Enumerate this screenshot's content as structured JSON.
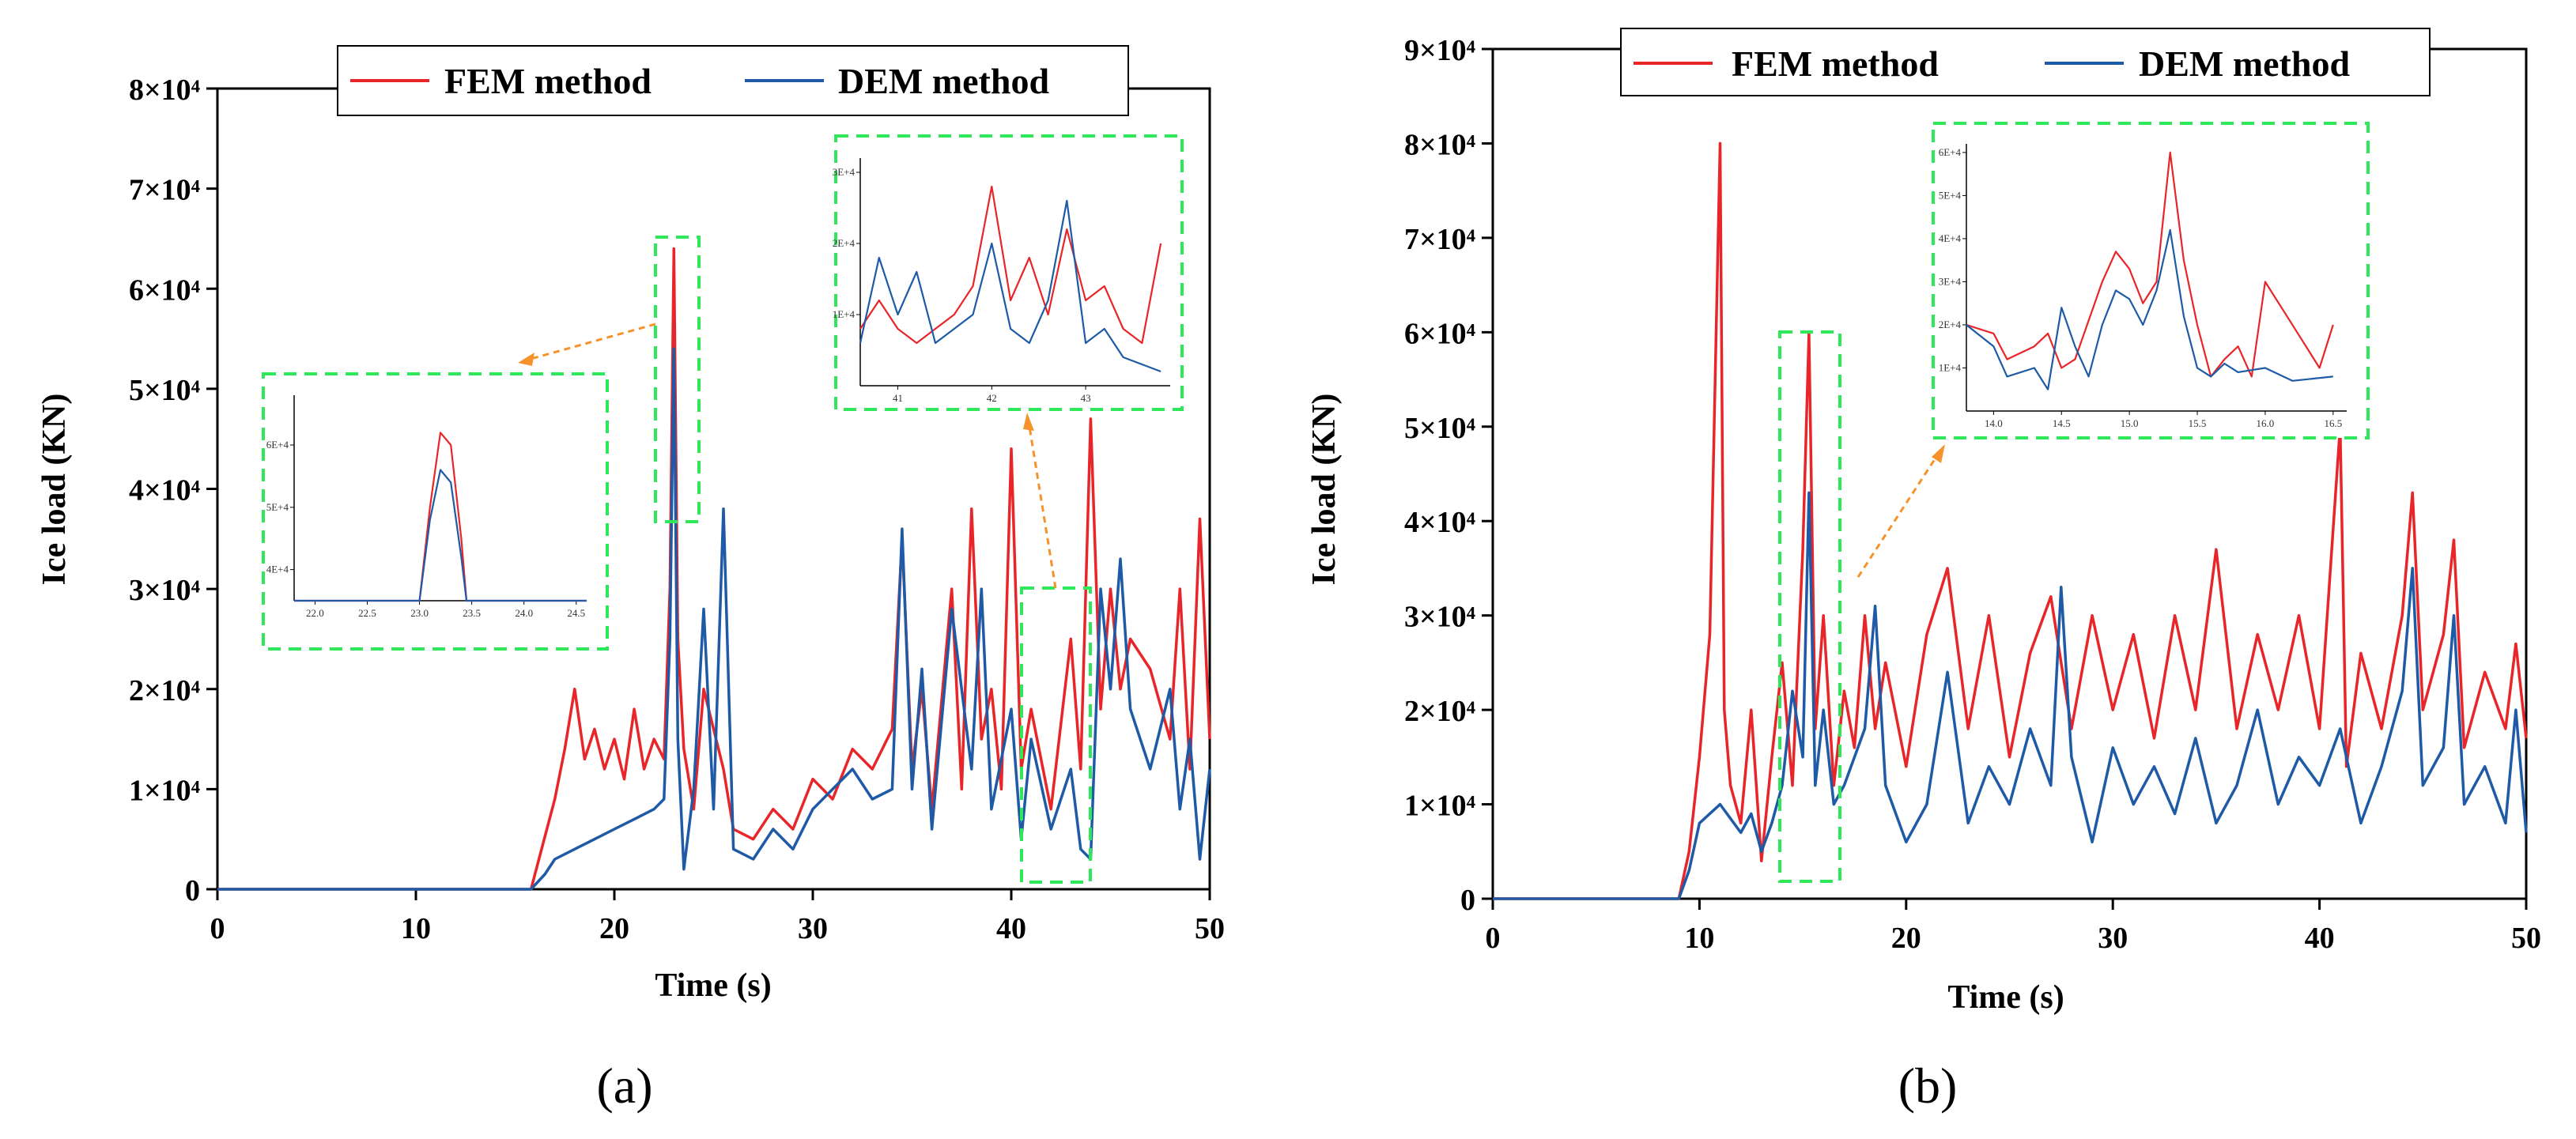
{
  "legend": {
    "fem": "FEM method",
    "dem": "DEM method"
  },
  "colors": {
    "fem": "#e8262a",
    "dem": "#1f5aa6",
    "highlight": "#2ee85a",
    "arrow": "#f5922a"
  },
  "chart_data": [
    {
      "panel": "(a)",
      "type": "line",
      "xlabel": "Time (s)",
      "ylabel": "Ice load (KN)",
      "xlim": [
        0,
        50
      ],
      "ylim": [
        0,
        80000
      ],
      "xticks": [
        0,
        10,
        20,
        30,
        40,
        50
      ],
      "ytick_labels": [
        {
          "value": 0,
          "label": "0"
        },
        {
          "value": 10000,
          "label": "1×10⁴"
        },
        {
          "value": 20000,
          "label": "2×10⁴"
        },
        {
          "value": 30000,
          "label": "3×10⁴"
        },
        {
          "value": 40000,
          "label": "4×10⁴"
        },
        {
          "value": 50000,
          "label": "5×10⁴"
        },
        {
          "value": 60000,
          "label": "6×10⁴"
        },
        {
          "value": 70000,
          "label": "7×10⁴"
        },
        {
          "value": 80000,
          "label": "8×10⁴"
        }
      ],
      "legend_position": "top-center",
      "series": [
        {
          "name": "FEM method",
          "x": [
            0,
            15.8,
            16.2,
            17,
            17.5,
            18,
            18.5,
            19,
            19.5,
            20,
            20.5,
            21,
            21.5,
            22,
            22.5,
            22.8,
            23.0,
            23.2,
            23.5,
            24,
            24.5,
            25,
            25.5,
            26,
            27,
            28,
            29,
            30,
            31,
            32,
            33,
            34,
            34.5,
            35,
            35.5,
            36,
            37,
            37.5,
            38,
            38.5,
            39,
            39.5,
            40,
            40.5,
            41,
            42,
            43,
            43.5,
            44,
            44.5,
            45,
            45.5,
            46,
            47,
            48,
            48.5,
            49,
            49.5,
            50
          ],
          "values": [
            0,
            0,
            3000,
            9000,
            14000,
            20000,
            13000,
            16000,
            12000,
            15000,
            11000,
            18000,
            12000,
            15000,
            13000,
            30000,
            64000,
            25000,
            14000,
            8000,
            20000,
            16000,
            12000,
            6000,
            5000,
            8000,
            6000,
            11000,
            9000,
            14000,
            12000,
            16000,
            35000,
            12000,
            20000,
            8000,
            30000,
            10000,
            38000,
            15000,
            20000,
            10000,
            44000,
            12000,
            18000,
            8000,
            25000,
            12000,
            47000,
            18000,
            30000,
            20000,
            25000,
            22000,
            15000,
            30000,
            12000,
            37000,
            15000
          ]
        },
        {
          "name": "DEM method",
          "x": [
            0,
            15.8,
            16.5,
            17,
            18,
            19,
            20,
            21,
            22,
            22.5,
            22.8,
            23.0,
            23.2,
            23.5,
            24,
            24.5,
            25,
            25.5,
            26,
            27,
            28,
            29,
            30,
            31,
            32,
            33,
            34,
            34.5,
            35,
            35.5,
            36,
            37,
            38,
            38.5,
            39,
            40,
            40.5,
            41,
            42,
            43,
            43.5,
            44,
            44.5,
            45,
            45.5,
            46,
            47,
            48,
            48.5,
            49,
            49.5,
            50
          ],
          "values": [
            0,
            0,
            1500,
            3000,
            4000,
            5000,
            6000,
            7000,
            8000,
            9000,
            25000,
            54000,
            15000,
            2000,
            10000,
            28000,
            8000,
            38000,
            4000,
            3000,
            6000,
            4000,
            8000,
            10000,
            12000,
            9000,
            10000,
            36000,
            10000,
            22000,
            6000,
            28000,
            12000,
            30000,
            8000,
            18000,
            5000,
            15000,
            6000,
            12000,
            4000,
            3000,
            30000,
            20000,
            33000,
            18000,
            12000,
            20000,
            8000,
            15000,
            3000,
            12000
          ]
        }
      ],
      "insets": [
        {
          "xticks": [
            "22.0",
            "22.5",
            "23.0",
            "23.5",
            "24.0",
            "24.5"
          ],
          "yticks": [
            "4E+4",
            "5E+4",
            "6E+4"
          ],
          "xrange": [
            21.8,
            24.6
          ],
          "yrange": [
            35000,
            68000
          ],
          "fem": [
            [
              21.8,
              35000
            ],
            [
              23.0,
              35000
            ],
            [
              23.1,
              50000
            ],
            [
              23.2,
              62000
            ],
            [
              23.3,
              60000
            ],
            [
              23.4,
              45000
            ],
            [
              23.45,
              35000
            ],
            [
              24.6,
              35000
            ]
          ],
          "dem": [
            [
              21.8,
              35000
            ],
            [
              23.0,
              35000
            ],
            [
              23.1,
              48000
            ],
            [
              23.2,
              56000
            ],
            [
              23.3,
              54000
            ],
            [
              23.4,
              42000
            ],
            [
              23.45,
              35000
            ],
            [
              24.6,
              35000
            ]
          ]
        },
        {
          "xticks": [
            "41",
            "42",
            "43"
          ],
          "yticks": [
            "1E+4",
            "2E+4",
            "3E+4"
          ],
          "xrange": [
            40.6,
            43.9
          ],
          "yrange": [
            0,
            32000
          ],
          "fem": [
            [
              40.6,
              8000
            ],
            [
              40.8,
              12000
            ],
            [
              41.0,
              8000
            ],
            [
              41.2,
              6000
            ],
            [
              41.4,
              8000
            ],
            [
              41.6,
              10000
            ],
            [
              41.8,
              14000
            ],
            [
              42.0,
              28000
            ],
            [
              42.2,
              12000
            ],
            [
              42.4,
              18000
            ],
            [
              42.6,
              10000
            ],
            [
              42.8,
              22000
            ],
            [
              43.0,
              12000
            ],
            [
              43.2,
              14000
            ],
            [
              43.4,
              8000
            ],
            [
              43.6,
              6000
            ],
            [
              43.8,
              20000
            ]
          ],
          "dem": [
            [
              40.6,
              6000
            ],
            [
              40.8,
              18000
            ],
            [
              41.0,
              10000
            ],
            [
              41.2,
              16000
            ],
            [
              41.4,
              6000
            ],
            [
              41.6,
              8000
            ],
            [
              41.8,
              10000
            ],
            [
              42.0,
              20000
            ],
            [
              42.2,
              8000
            ],
            [
              42.4,
              6000
            ],
            [
              42.6,
              12000
            ],
            [
              42.8,
              26000
            ],
            [
              43.0,
              6000
            ],
            [
              43.2,
              8000
            ],
            [
              43.4,
              4000
            ],
            [
              43.6,
              3000
            ],
            [
              43.8,
              2000
            ]
          ]
        }
      ]
    },
    {
      "panel": "(b)",
      "type": "line",
      "xlabel": "Time (s)",
      "ylabel": "Ice load (KN)",
      "xlim": [
        0,
        50
      ],
      "ylim": [
        0,
        90000
      ],
      "xticks": [
        0,
        10,
        20,
        30,
        40,
        50
      ],
      "ytick_labels": [
        {
          "value": 0,
          "label": "0"
        },
        {
          "value": 10000,
          "label": "1×10⁴"
        },
        {
          "value": 20000,
          "label": "2×10⁴"
        },
        {
          "value": 30000,
          "label": "3×10⁴"
        },
        {
          "value": 40000,
          "label": "4×10⁴"
        },
        {
          "value": 50000,
          "label": "5×10⁴"
        },
        {
          "value": 60000,
          "label": "6×10⁴"
        },
        {
          "value": 70000,
          "label": "7×10⁴"
        },
        {
          "value": 80000,
          "label": "8×10⁴"
        },
        {
          "value": 90000,
          "label": "9×10⁴"
        }
      ],
      "legend_position": "top-center",
      "series": [
        {
          "name": "FEM method",
          "x": [
            0,
            9,
            9.5,
            10,
            10.5,
            11,
            11.2,
            11.5,
            12,
            12.5,
            13,
            13.5,
            14,
            14.5,
            15,
            15.3,
            15.6,
            16,
            16.5,
            17,
            17.5,
            18,
            18.5,
            19,
            20,
            21,
            22,
            23,
            24,
            25,
            26,
            27,
            28,
            29,
            30,
            31,
            32,
            33,
            34,
            35,
            36,
            37,
            38,
            39,
            40,
            41,
            41.3,
            42,
            43,
            44,
            44.5,
            45,
            46,
            46.5,
            47,
            48,
            49,
            49.5,
            50
          ],
          "values": [
            0,
            0,
            5000,
            15000,
            28000,
            80000,
            20000,
            12000,
            8000,
            20000,
            4000,
            15000,
            25000,
            12000,
            37000,
            60000,
            18000,
            30000,
            12000,
            22000,
            16000,
            30000,
            18000,
            25000,
            14000,
            28000,
            35000,
            18000,
            30000,
            15000,
            26000,
            32000,
            18000,
            30000,
            20000,
            28000,
            17000,
            30000,
            20000,
            37000,
            18000,
            28000,
            20000,
            30000,
            18000,
            50000,
            14000,
            26000,
            18000,
            30000,
            43000,
            20000,
            28000,
            38000,
            16000,
            24000,
            18000,
            27000,
            17000
          ]
        },
        {
          "name": "DEM method",
          "x": [
            0,
            9,
            9.5,
            10,
            11,
            12,
            12.5,
            13,
            13.5,
            14,
            14.5,
            15,
            15.3,
            15.6,
            16,
            16.5,
            17,
            18,
            18.5,
            19,
            20,
            21,
            22,
            23,
            24,
            25,
            26,
            27,
            27.5,
            28,
            29,
            30,
            31,
            32,
            33,
            34,
            35,
            36,
            37,
            38,
            39,
            40,
            41,
            42,
            43,
            44,
            44.5,
            45,
            46,
            46.5,
            47,
            48,
            49,
            49.5,
            50
          ],
          "values": [
            0,
            0,
            3000,
            8000,
            10000,
            7000,
            9000,
            5000,
            8000,
            12000,
            22000,
            15000,
            43000,
            12000,
            20000,
            10000,
            12000,
            18000,
            31000,
            12000,
            6000,
            10000,
            24000,
            8000,
            14000,
            10000,
            18000,
            12000,
            33000,
            15000,
            6000,
            16000,
            10000,
            14000,
            9000,
            17000,
            8000,
            12000,
            20000,
            10000,
            15000,
            12000,
            18000,
            8000,
            14000,
            22000,
            35000,
            12000,
            16000,
            30000,
            10000,
            14000,
            8000,
            20000,
            7000
          ]
        }
      ],
      "insets": [
        {
          "xticks": [
            "14.0",
            "14.5",
            "15.0",
            "15.5",
            "16.0",
            "16.5"
          ],
          "yticks": [
            "1E+4",
            "2E+4",
            "3E+4",
            "4E+4",
            "5E+4",
            "6E+4"
          ],
          "xrange": [
            13.8,
            16.6
          ],
          "yrange": [
            0,
            62000
          ],
          "fem": [
            [
              13.8,
              20000
            ],
            [
              14.0,
              18000
            ],
            [
              14.1,
              12000
            ],
            [
              14.3,
              15000
            ],
            [
              14.4,
              18000
            ],
            [
              14.5,
              10000
            ],
            [
              14.6,
              12000
            ],
            [
              14.8,
              30000
            ],
            [
              14.9,
              37000
            ],
            [
              15.0,
              33000
            ],
            [
              15.1,
              25000
            ],
            [
              15.2,
              30000
            ],
            [
              15.3,
              60000
            ],
            [
              15.4,
              35000
            ],
            [
              15.5,
              20000
            ],
            [
              15.6,
              8000
            ],
            [
              15.7,
              12000
            ],
            [
              15.8,
              15000
            ],
            [
              15.9,
              8000
            ],
            [
              16.0,
              30000
            ],
            [
              16.1,
              25000
            ],
            [
              16.3,
              15000
            ],
            [
              16.4,
              10000
            ],
            [
              16.5,
              20000
            ]
          ],
          "dem": [
            [
              13.8,
              20000
            ],
            [
              14.0,
              15000
            ],
            [
              14.1,
              8000
            ],
            [
              14.3,
              10000
            ],
            [
              14.4,
              5000
            ],
            [
              14.5,
              24000
            ],
            [
              14.6,
              15000
            ],
            [
              14.7,
              8000
            ],
            [
              14.8,
              20000
            ],
            [
              14.9,
              28000
            ],
            [
              15.0,
              26000
            ],
            [
              15.1,
              20000
            ],
            [
              15.2,
              28000
            ],
            [
              15.3,
              42000
            ],
            [
              15.4,
              22000
            ],
            [
              15.5,
              10000
            ],
            [
              15.6,
              8000
            ],
            [
              15.7,
              11000
            ],
            [
              15.8,
              9000
            ],
            [
              16.0,
              10000
            ],
            [
              16.2,
              7000
            ],
            [
              16.5,
              8000
            ]
          ]
        }
      ]
    }
  ]
}
